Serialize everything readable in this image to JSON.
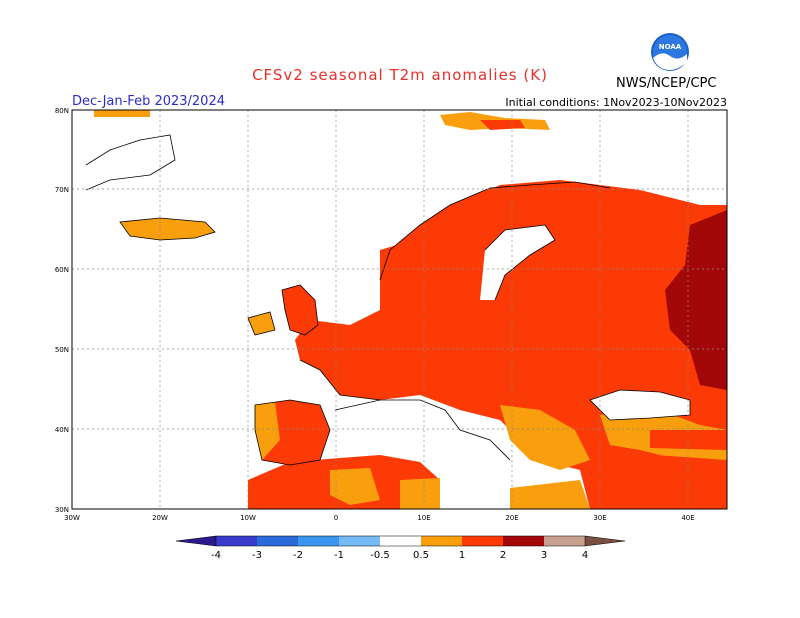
{
  "header": {
    "title": "CFSv2 seasonal T2m anomalies (K)",
    "period": "Dec-Jan-Feb 2023/2024",
    "initial_conditions": "Initial conditions: 1Nov2023-10Nov2023",
    "agency": "NWS/NCEP/CPC",
    "logo_text": "NOAA"
  },
  "axes": {
    "lat_labels": [
      "30N",
      "40N",
      "50N",
      "60N",
      "70N",
      "80N"
    ],
    "lon_labels": [
      "30W",
      "20W",
      "10W",
      "0",
      "10E",
      "20E",
      "30E",
      "40E"
    ]
  },
  "colorbar": {
    "labels": [
      "-4",
      "-3",
      "-2",
      "-1",
      "-0.5",
      "0.5",
      "1",
      "2",
      "3",
      "4"
    ],
    "colors": {
      "lt_-4": "#2a1a8c",
      "-4_-3": "#3a3acc",
      "-3_-2": "#2a6ad8",
      "-2_-1": "#3a96ee",
      "-1_-0.5": "#76baf6",
      "-0.5_0.5": "#ffffff",
      "0.5_1": "#f99f0d",
      "1_2": "#fb3a06",
      "2_3": "#a20808",
      "3_4": "#c8a090",
      "gt_4": "#7a4e40"
    }
  }
}
